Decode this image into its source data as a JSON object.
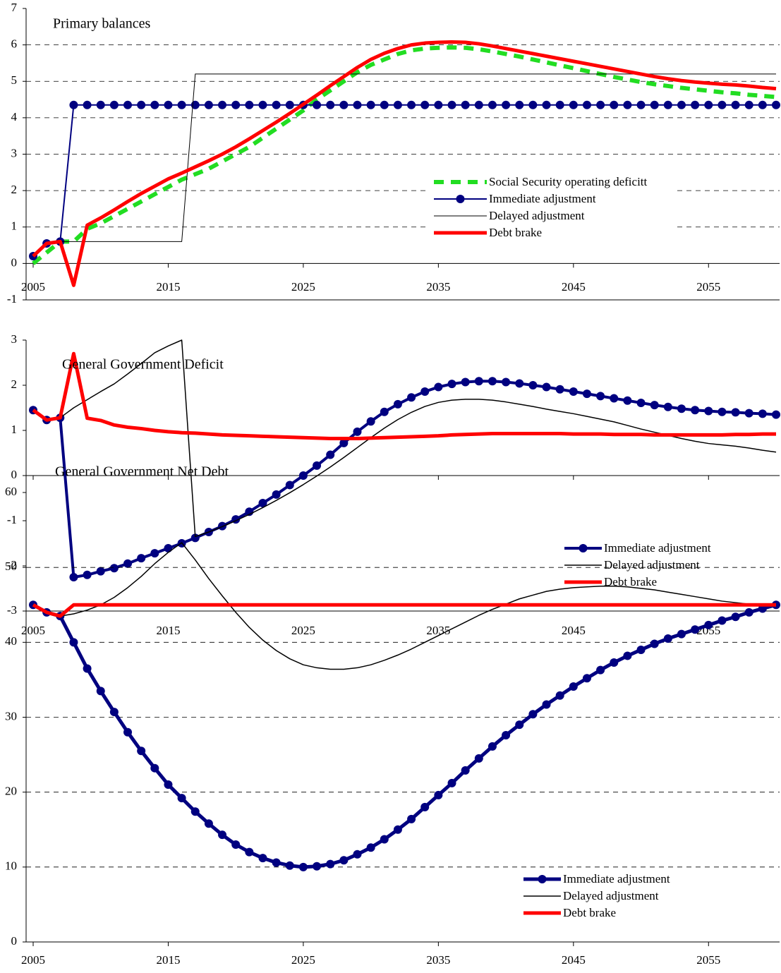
{
  "chart_data": [
    {
      "type": "line",
      "title": "Primary balances",
      "legend": true,
      "grid": true,
      "x": [
        2005,
        2006,
        2007,
        2008,
        2009,
        2010,
        2011,
        2012,
        2013,
        2014,
        2015,
        2016,
        2017,
        2018,
        2019,
        2020,
        2021,
        2022,
        2023,
        2024,
        2025,
        2026,
        2027,
        2028,
        2029,
        2030,
        2031,
        2032,
        2033,
        2034,
        2035,
        2036,
        2037,
        2038,
        2039,
        2040,
        2041,
        2042,
        2043,
        2044,
        2045,
        2046,
        2047,
        2048,
        2049,
        2050,
        2051,
        2052,
        2053,
        2054,
        2055,
        2056,
        2057,
        2058,
        2059,
        2060
      ],
      "xlim": [
        2005,
        2060
      ],
      "xticks": [
        2005,
        2015,
        2025,
        2035,
        2045,
        2055
      ],
      "ylim": [
        -1,
        7
      ],
      "yticks": [
        -1,
        0,
        1,
        2,
        3,
        4,
        5,
        6,
        7
      ],
      "series": [
        {
          "name": "Social Security operating deficitt",
          "color": "#22dd22",
          "linewidth": 6,
          "dash": true,
          "values": [
            0,
            0.3,
            0.6,
            0.6,
            0.95,
            1.1,
            1.3,
            1.5,
            1.7,
            1.9,
            2.1,
            2.3,
            2.45,
            2.6,
            2.8,
            3.0,
            3.2,
            3.45,
            3.7,
            3.95,
            4.2,
            4.5,
            4.75,
            5.0,
            5.25,
            5.45,
            5.6,
            5.75,
            5.85,
            5.9,
            5.92,
            5.93,
            5.92,
            5.88,
            5.82,
            5.75,
            5.68,
            5.6,
            5.52,
            5.44,
            5.36,
            5.28,
            5.2,
            5.12,
            5.05,
            4.98,
            4.92,
            4.87,
            4.82,
            4.78,
            4.74,
            4.7,
            4.67,
            4.63,
            4.6,
            4.57
          ]
        },
        {
          "name": "Immediate adjustment",
          "color": "#000080",
          "linewidth": 2,
          "marker": "circle",
          "values": [
            0.2,
            0.55,
            0.6,
            4.35,
            4.35,
            4.35,
            4.35,
            4.35,
            4.35,
            4.35,
            4.35,
            4.35,
            4.35,
            4.35,
            4.35,
            4.35,
            4.35,
            4.35,
            4.35,
            4.35,
            4.35,
            4.35,
            4.35,
            4.35,
            4.35,
            4.35,
            4.35,
            4.35,
            4.35,
            4.35,
            4.35,
            4.35,
            4.35,
            4.35,
            4.35,
            4.35,
            4.35,
            4.35,
            4.35,
            4.35,
            4.35,
            4.35,
            4.35,
            4.35,
            4.35,
            4.35,
            4.35,
            4.35,
            4.35,
            4.35,
            4.35,
            4.35,
            4.35,
            4.35,
            4.35,
            4.35
          ]
        },
        {
          "name": "Delayed adjustment",
          "color": "#000000",
          "linewidth": 1,
          "values": [
            0.2,
            0.55,
            0.6,
            0.6,
            0.6,
            0.6,
            0.6,
            0.6,
            0.6,
            0.6,
            0.6,
            0.6,
            5.2,
            5.2,
            5.2,
            5.2,
            5.2,
            5.2,
            5.2,
            5.2,
            5.2,
            5.2,
            5.2,
            5.2,
            5.2,
            5.2,
            5.2,
            5.2,
            5.2,
            5.2,
            5.2,
            5.2,
            5.2,
            5.2,
            5.2,
            5.2,
            5.2,
            5.2,
            5.2,
            5.2,
            5.2,
            5.2,
            5.2,
            5.2,
            5.2,
            5.2,
            5.2,
            5.2,
            5.2,
            5.2,
            5.2,
            5.2,
            5.2,
            5.2,
            5.2,
            5.2
          ]
        },
        {
          "name": "Debt brake",
          "color": "#ff0000",
          "linewidth": 5,
          "values": [
            0.2,
            0.55,
            0.6,
            -0.6,
            1.05,
            1.25,
            1.47,
            1.7,
            1.92,
            2.12,
            2.32,
            2.48,
            2.65,
            2.82,
            3.0,
            3.2,
            3.42,
            3.65,
            3.88,
            4.12,
            4.37,
            4.62,
            4.88,
            5.13,
            5.38,
            5.6,
            5.77,
            5.9,
            6.0,
            6.05,
            6.07,
            6.08,
            6.07,
            6.03,
            5.97,
            5.9,
            5.83,
            5.76,
            5.69,
            5.62,
            5.55,
            5.48,
            5.41,
            5.34,
            5.27,
            5.2,
            5.13,
            5.07,
            5.02,
            4.98,
            4.95,
            4.92,
            4.9,
            4.87,
            4.83,
            4.8
          ]
        }
      ]
    },
    {
      "type": "line",
      "title": "General Government Deficit",
      "legend": true,
      "grid": false,
      "x": [
        2005,
        2006,
        2007,
        2008,
        2009,
        2010,
        2011,
        2012,
        2013,
        2014,
        2015,
        2016,
        2017,
        2018,
        2019,
        2020,
        2021,
        2022,
        2023,
        2024,
        2025,
        2026,
        2027,
        2028,
        2029,
        2030,
        2031,
        2032,
        2033,
        2034,
        2035,
        2036,
        2037,
        2038,
        2039,
        2040,
        2041,
        2042,
        2043,
        2044,
        2045,
        2046,
        2047,
        2048,
        2049,
        2050,
        2051,
        2052,
        2053,
        2054,
        2055,
        2056,
        2057,
        2058,
        2059,
        2060
      ],
      "xlim": [
        2005,
        2060
      ],
      "xticks": [
        2005,
        2015,
        2025,
        2035,
        2045,
        2055
      ],
      "ylim": [
        -3,
        3
      ],
      "yticks": [
        -3,
        -2,
        -1,
        0,
        1,
        2,
        3
      ],
      "series": [
        {
          "name": "Immediate adjustment",
          "color": "#000080",
          "linewidth": 4,
          "marker": "circle",
          "values": [
            1.45,
            1.23,
            1.28,
            -2.25,
            -2.2,
            -2.12,
            -2.05,
            -1.95,
            -1.83,
            -1.72,
            -1.61,
            -1.5,
            -1.38,
            -1.25,
            -1.12,
            -0.97,
            -0.8,
            -0.61,
            -0.42,
            -0.21,
            0.0,
            0.22,
            0.46,
            0.72,
            0.97,
            1.2,
            1.41,
            1.58,
            1.73,
            1.86,
            1.96,
            2.03,
            2.07,
            2.09,
            2.09,
            2.07,
            2.04,
            2.0,
            1.96,
            1.91,
            1.86,
            1.81,
            1.76,
            1.71,
            1.66,
            1.61,
            1.56,
            1.52,
            1.48,
            1.45,
            1.43,
            1.41,
            1.4,
            1.38,
            1.37,
            1.35
          ]
        },
        {
          "name": "Delayed adjustment",
          "color": "#000000",
          "linewidth": 1.5,
          "values": [
            1.45,
            1.23,
            1.28,
            1.5,
            1.68,
            1.86,
            2.03,
            2.25,
            2.48,
            2.72,
            2.87,
            3.0,
            -1.35,
            -1.25,
            -1.13,
            -1.0,
            -0.86,
            -0.71,
            -0.55,
            -0.38,
            -0.2,
            -0.01,
            0.19,
            0.4,
            0.62,
            0.84,
            1.05,
            1.24,
            1.4,
            1.53,
            1.62,
            1.67,
            1.69,
            1.69,
            1.67,
            1.63,
            1.58,
            1.53,
            1.47,
            1.42,
            1.37,
            1.31,
            1.25,
            1.19,
            1.11,
            1.03,
            0.96,
            0.89,
            0.82,
            0.76,
            0.71,
            0.68,
            0.65,
            0.61,
            0.56,
            0.52
          ]
        },
        {
          "name": "Debt brake",
          "color": "#ff0000",
          "linewidth": 5,
          "values": [
            1.45,
            1.23,
            1.28,
            2.7,
            1.27,
            1.22,
            1.12,
            1.07,
            1.04,
            1.0,
            0.97,
            0.95,
            0.94,
            0.92,
            0.9,
            0.89,
            0.88,
            0.87,
            0.86,
            0.85,
            0.84,
            0.83,
            0.82,
            0.82,
            0.82,
            0.83,
            0.84,
            0.85,
            0.86,
            0.87,
            0.88,
            0.9,
            0.91,
            0.92,
            0.93,
            0.93,
            0.93,
            0.93,
            0.93,
            0.93,
            0.92,
            0.92,
            0.92,
            0.91,
            0.91,
            0.91,
            0.9,
            0.9,
            0.9,
            0.9,
            0.9,
            0.9,
            0.91,
            0.91,
            0.92,
            0.92
          ]
        }
      ]
    },
    {
      "type": "line",
      "title": "General Government Net Debt",
      "legend": true,
      "grid": true,
      "x": [
        2005,
        2006,
        2007,
        2008,
        2009,
        2010,
        2011,
        2012,
        2013,
        2014,
        2015,
        2016,
        2017,
        2018,
        2019,
        2020,
        2021,
        2022,
        2023,
        2024,
        2025,
        2026,
        2027,
        2028,
        2029,
        2030,
        2031,
        2032,
        2033,
        2034,
        2035,
        2036,
        2037,
        2038,
        2039,
        2040,
        2041,
        2042,
        2043,
        2044,
        2045,
        2046,
        2047,
        2048,
        2049,
        2050,
        2051,
        2052,
        2053,
        2054,
        2055,
        2056,
        2057,
        2058,
        2059,
        2060
      ],
      "xlim": [
        2005,
        2060
      ],
      "xticks": [
        2005,
        2015,
        2025,
        2035,
        2045,
        2055
      ],
      "ylim": [
        0,
        60
      ],
      "yticks": [
        0,
        10,
        20,
        30,
        40,
        50,
        60
      ],
      "series": [
        {
          "name": "Immediate adjustment",
          "color": "#000080",
          "linewidth": 5,
          "marker": "circle",
          "values": [
            45,
            44,
            43.5,
            40,
            36.5,
            33.5,
            30.7,
            28,
            25.5,
            23.2,
            21,
            19.2,
            17.4,
            15.8,
            14.3,
            13,
            12,
            11.2,
            10.6,
            10.2,
            10.0,
            10.1,
            10.4,
            10.9,
            11.7,
            12.6,
            13.7,
            15,
            16.4,
            18,
            19.6,
            21.2,
            22.9,
            24.5,
            26.1,
            27.6,
            29,
            30.4,
            31.7,
            32.9,
            34.1,
            35.2,
            36.3,
            37.3,
            38.2,
            39,
            39.8,
            40.5,
            41.1,
            41.7,
            42.3,
            42.9,
            43.4,
            44,
            44.5,
            45
          ]
        },
        {
          "name": "Delayed adjustment",
          "color": "#000000",
          "linewidth": 1.5,
          "values": [
            45,
            44,
            43.5,
            43.8,
            44.3,
            45,
            46,
            47.3,
            48.8,
            50.5,
            52,
            53.3,
            51,
            48.5,
            46.2,
            44,
            42,
            40.3,
            38.9,
            37.8,
            37,
            36.6,
            36.4,
            36.4,
            36.6,
            37,
            37.6,
            38.3,
            39.1,
            40,
            40.9,
            41.8,
            42.7,
            43.6,
            44.4,
            45.1,
            45.8,
            46.3,
            46.8,
            47.1,
            47.3,
            47.4,
            47.5,
            47.5,
            47.4,
            47.2,
            47,
            46.7,
            46.4,
            46.1,
            45.8,
            45.5,
            45.3,
            45.1,
            45,
            45
          ]
        },
        {
          "name": "Debt brake",
          "color": "#ff0000",
          "linewidth": 5,
          "values": [
            45,
            44,
            43.5,
            45,
            45,
            45,
            45,
            45,
            45,
            45,
            45,
            45,
            45,
            45,
            45,
            45,
            45,
            45,
            45,
            45,
            45,
            45,
            45,
            45,
            45,
            45,
            45,
            45,
            45,
            45,
            45,
            45,
            45,
            45,
            45,
            45,
            45,
            45,
            45,
            45,
            45,
            45,
            45,
            45,
            45,
            45,
            45,
            45,
            45,
            45,
            45,
            45,
            45,
            45,
            45,
            45
          ]
        }
      ]
    }
  ]
}
